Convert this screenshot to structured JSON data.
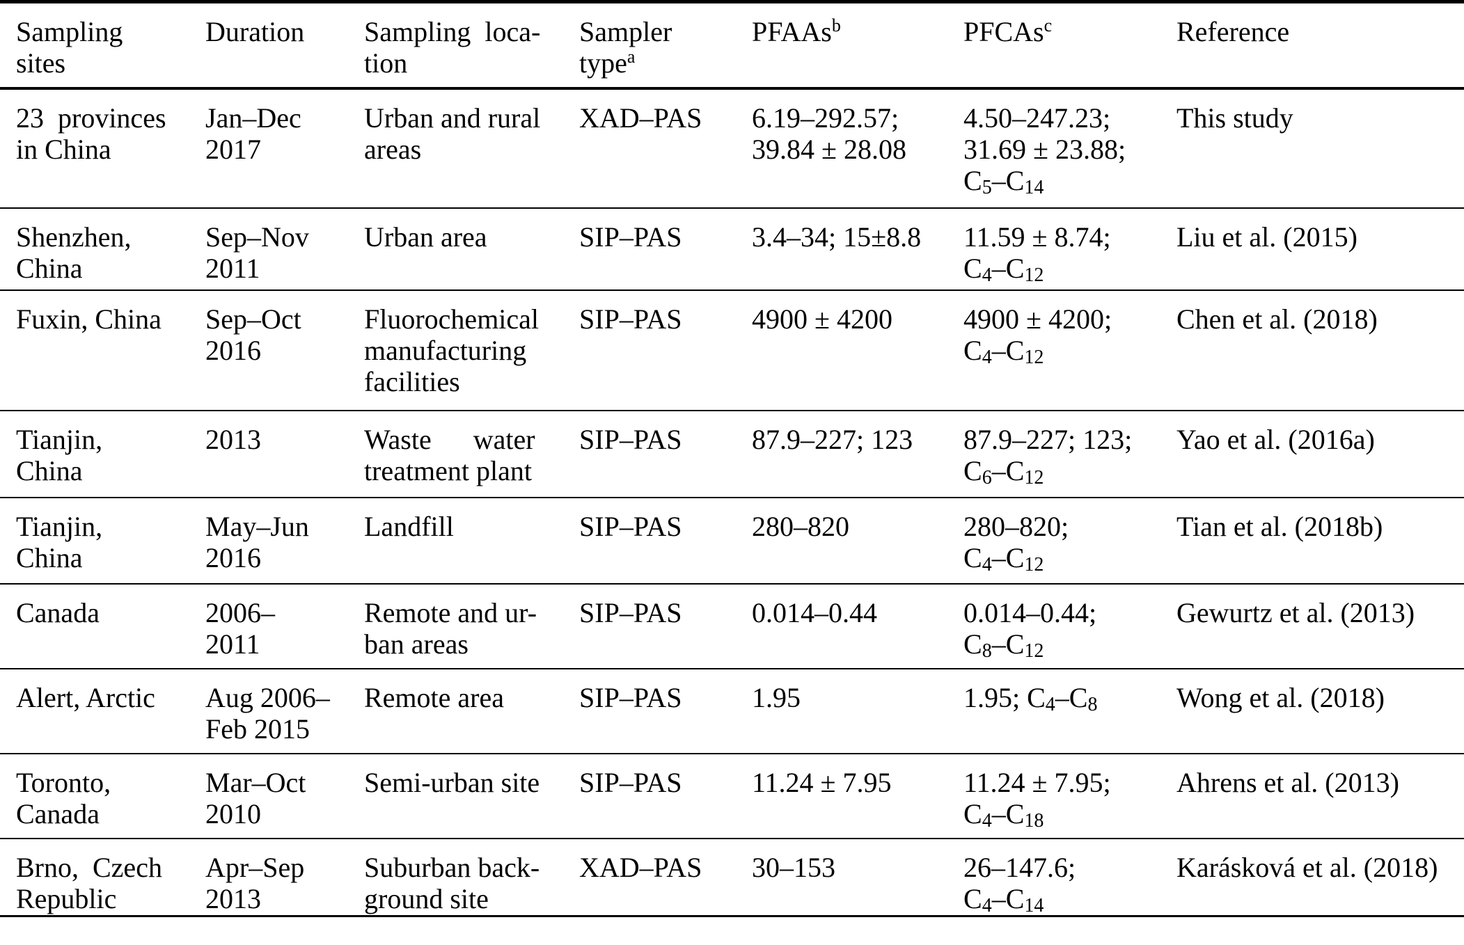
{
  "table": {
    "columns": [
      {
        "key": "sites",
        "label": "Sampling\nsites"
      },
      {
        "key": "duration",
        "label": "Duration"
      },
      {
        "key": "location",
        "label": "Sampling  loca-\ntion"
      },
      {
        "key": "sampler",
        "label": "Sampler\ntype^{a}"
      },
      {
        "key": "pfaas",
        "label": "PFAAs^{b}"
      },
      {
        "key": "pfcas",
        "label": "PFCAs^{c}"
      },
      {
        "key": "reference",
        "label": "Reference"
      }
    ],
    "rows": [
      {
        "cells": [
          "23  provinces\nin China",
          "Jan–Dec\n2017",
          "Urban and rural\nareas",
          "XAD–PAS",
          "6.19–292.57;\n39.84 ± 28.08",
          "4.50–247.23;\n31.69 ± 23.88;\nC_{5}–C_{14}",
          "This study"
        ]
      },
      {
        "cells": [
          "Shenzhen,\nChina",
          "Sep–Nov\n2011",
          "Urban area",
          "SIP–PAS",
          "3.4–34; 15±8.8",
          "11.59 ± 8.74;\nC_{4}–C_{12}",
          "Liu et al. (2015)"
        ]
      },
      {
        "cells": [
          "Fuxin, China",
          "Sep–Oct\n2016",
          "Fluorochemical\nmanufacturing\nfacilities",
          "SIP–PAS",
          "4900 ± 4200",
          "4900 ± 4200;\nC_{4}–C_{12}",
          "Chen et al. (2018)"
        ]
      },
      {
        "cells": [
          "Tianjin,\nChina",
          "2013",
          "Waste      water\ntreatment plant",
          "SIP–PAS",
          "87.9–227; 123",
          "87.9–227; 123;\nC_{6}–C_{12}",
          "Yao et al. (2016a)"
        ]
      },
      {
        "cells": [
          "Tianjin,\nChina",
          "May–Jun\n2016",
          "Landfill",
          "SIP–PAS",
          "280–820",
          "280–820;\nC_{4}–C_{12}",
          "Tian et al. (2018b)"
        ]
      },
      {
        "cells": [
          "Canada",
          "2006–\n2011",
          "Remote and ur-\nban areas",
          "SIP–PAS",
          "0.014–0.44",
          "0.014–0.44;\nC_{8}–C_{12}",
          "Gewurtz et al. (2013)"
        ]
      },
      {
        "cells": [
          "Alert, Arctic",
          "Aug 2006–\nFeb 2015",
          "Remote area",
          "SIP–PAS",
          "1.95",
          "1.95; C_{4}–C_{8}",
          "Wong et al. (2018)"
        ]
      },
      {
        "cells": [
          "Toronto,\nCanada",
          "Mar–Oct\n2010",
          "Semi-urban site",
          "SIP–PAS",
          "11.24 ± 7.95",
          "11.24 ± 7.95;\nC_{4}–C_{18}",
          "Ahrens et al. (2013)"
        ]
      },
      {
        "cells": [
          "Brno,  Czech\nRepublic",
          "Apr–Sep\n2013",
          "Suburban back-\nground site",
          "XAD–PAS",
          "30–153",
          "26–147.6;\nC_{4}–C_{14}",
          "Karásková et al. (2018)"
        ]
      }
    ]
  }
}
